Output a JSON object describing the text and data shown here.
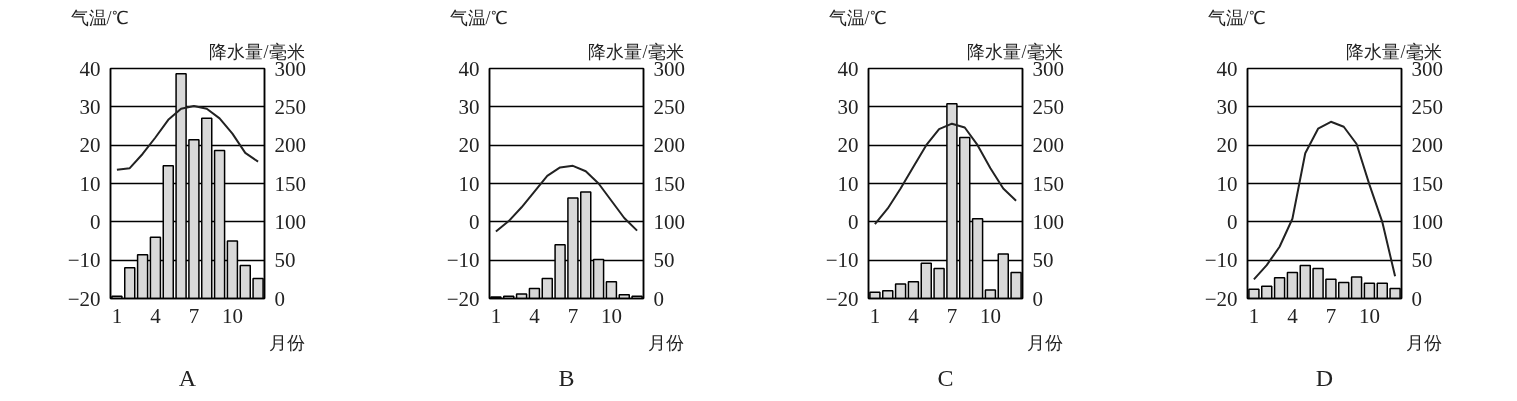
{
  "chart_data": [
    {
      "type": "bar",
      "title": "A",
      "xlabel": "月份",
      "ylabel": "气温/℃",
      "y2label": "降水量/毫米",
      "categories": [
        "1",
        null,
        null,
        "4",
        null,
        null,
        "7",
        null,
        null,
        "10",
        null,
        null
      ],
      "ylim": [
        -20,
        40
      ],
      "yticks": [
        -20,
        -10,
        0,
        10,
        20,
        30,
        40
      ],
      "y2lim": [
        0,
        300
      ],
      "y2ticks": [
        0,
        50,
        100,
        150,
        200,
        250,
        300
      ],
      "grid": "y",
      "series": [
        {
          "axis": "y2",
          "color": "#d9d9d9",
          "values": [
            3,
            40,
            57,
            80,
            173,
            293,
            207,
            235,
            193,
            75,
            43,
            26
          ]
        },
        {
          "type": "line",
          "axis": "y",
          "color": "#222222",
          "values": [
            13.6,
            14,
            17.7,
            22,
            26.6,
            29.5,
            30.2,
            29.5,
            27,
            23,
            18,
            15.7
          ]
        }
      ]
    },
    {
      "type": "bar",
      "title": "B",
      "xlabel": "月份",
      "ylabel": "气温/℃",
      "y2label": "降水量/毫米",
      "categories": [
        "1",
        null,
        null,
        "4",
        null,
        null,
        "7",
        null,
        null,
        "10",
        null,
        null
      ],
      "ylim": [
        -20,
        40
      ],
      "yticks": [
        -20,
        -10,
        0,
        10,
        20,
        30,
        40
      ],
      "y2lim": [
        0,
        300
      ],
      "y2ticks": [
        0,
        50,
        100,
        150,
        200,
        250,
        300
      ],
      "grid": "y",
      "series": [
        {
          "axis": "y2",
          "color": "#d9d9d9",
          "values": [
            2,
            3,
            6,
            13,
            26,
            70,
            131,
            139,
            51,
            22,
            5,
            3
          ]
        },
        {
          "type": "line",
          "axis": "y",
          "color": "#222222",
          "values": [
            -2.5,
            0.2,
            3.8,
            7.9,
            12,
            14.2,
            14.6,
            13.2,
            10,
            5.5,
            1,
            -2.3
          ]
        }
      ]
    },
    {
      "type": "bar",
      "title": "C",
      "xlabel": "月份",
      "ylabel": "气温/℃",
      "y2label": "降水量/毫米",
      "categories": [
        "1",
        null,
        null,
        "4",
        null,
        null,
        "7",
        null,
        null,
        "10",
        null,
        null
      ],
      "ylim": [
        -20,
        40
      ],
      "yticks": [
        -20,
        -10,
        0,
        10,
        20,
        30,
        40
      ],
      "y2lim": [
        0,
        300
      ],
      "y2ticks": [
        0,
        50,
        100,
        150,
        200,
        250,
        300
      ],
      "grid": "y",
      "series": [
        {
          "axis": "y2",
          "color": "#d9d9d9",
          "values": [
            8,
            10,
            19,
            22,
            46,
            39,
            254,
            210,
            104,
            11,
            58,
            34
          ]
        },
        {
          "type": "line",
          "axis": "y",
          "color": "#222222",
          "values": [
            -0.6,
            3.5,
            8.7,
            14.4,
            20,
            24.2,
            25.6,
            24.6,
            20,
            14,
            8.7,
            5.5
          ]
        }
      ]
    },
    {
      "type": "bar",
      "title": "D",
      "xlabel": "月份",
      "ylabel": "气温/℃",
      "y2label": "降水量/毫米",
      "categories": [
        "1",
        null,
        null,
        "4",
        null,
        null,
        "7",
        null,
        null,
        "10",
        null,
        null
      ],
      "ylim": [
        -20,
        40
      ],
      "yticks": [
        -20,
        -10,
        0,
        10,
        20,
        30,
        40
      ],
      "y2lim": [
        0,
        300
      ],
      "y2ticks": [
        0,
        50,
        100,
        150,
        200,
        250,
        300
      ],
      "grid": "y",
      "series": [
        {
          "axis": "y2",
          "color": "#d9d9d9",
          "values": [
            12,
            16,
            27,
            34,
            43,
            39,
            25,
            21,
            28,
            20,
            20,
            13
          ]
        },
        {
          "type": "line",
          "axis": "y",
          "color": "#222222",
          "values": [
            -15,
            -11.3,
            -6.5,
            0.8,
            17.9,
            24.3,
            26.1,
            24.8,
            20.3,
            9.7,
            0,
            -14.2
          ]
        }
      ]
    }
  ]
}
